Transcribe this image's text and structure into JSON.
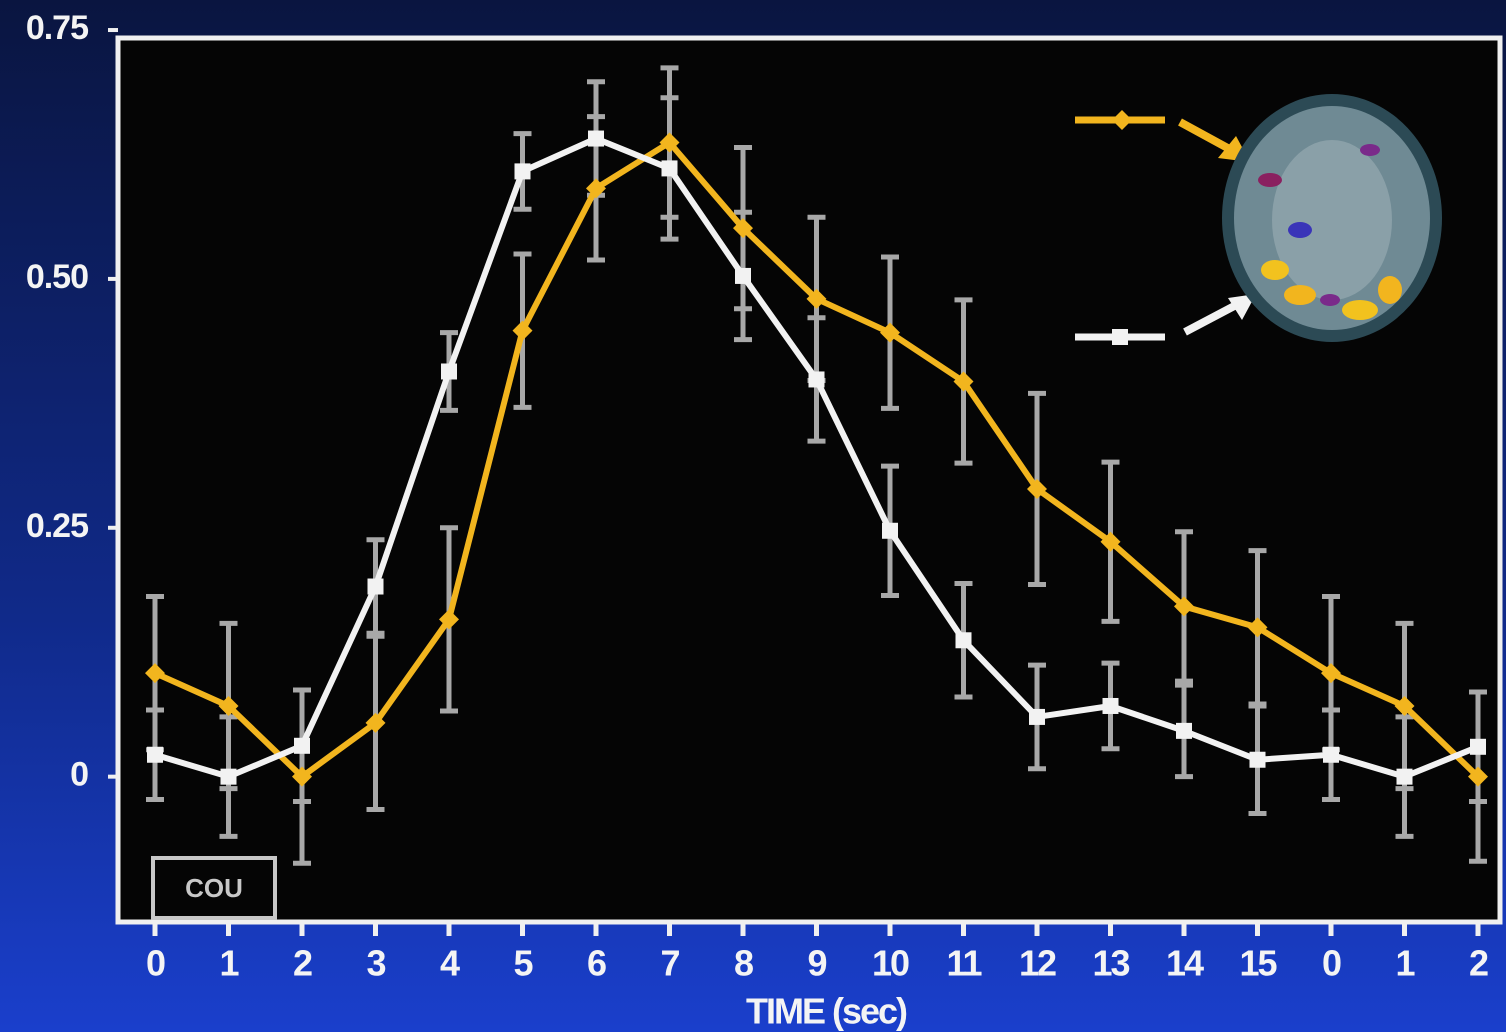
{
  "chart_data": {
    "type": "line",
    "x_label": "TIME (sec)",
    "annotation": "COU",
    "categories": [
      "0",
      "1",
      "2",
      "3",
      "4",
      "5",
      "6",
      "7",
      "8",
      "9",
      "10",
      "11",
      "12",
      "13",
      "14",
      "15",
      "0",
      "1",
      "2"
    ],
    "series": [
      {
        "color": "#f2b51e",
        "marker": "diamond",
        "values": [
          0.104,
          0.071,
          0,
          0.054,
          0.158,
          0.448,
          0.591,
          0.637,
          0.551,
          0.48,
          0.446,
          0.397,
          0.289,
          0.236,
          0.171,
          0.15,
          0.104,
          0.071,
          0
        ],
        "errors": [
          0.077,
          0.083,
          0.087,
          0.087,
          0.092,
          0.077,
          0.072,
          0.075,
          0.081,
          0.082,
          0.076,
          0.082,
          0.096,
          0.08,
          0.075,
          0.077,
          0.077,
          0.083,
          0.085
        ]
      },
      {
        "color": "#f2f2f2",
        "marker": "square",
        "values": [
          0.022,
          0,
          0.031,
          0.191,
          0.407,
          0.608,
          0.641,
          0.611,
          0.503,
          0.399,
          0.247,
          0.137,
          0.06,
          0.071,
          0.046,
          0.017,
          0.022,
          0,
          0.03
        ],
        "errors": [
          0.045,
          0.06,
          0.056,
          0.047,
          0.039,
          0.038,
          0.057,
          0.071,
          0.064,
          0.062,
          0.065,
          0.057,
          0.052,
          0.043,
          0.046,
          0.054,
          0.045,
          0.06,
          0.055
        ]
      }
    ],
    "ylim": [
      -0.146,
      0.742
    ],
    "yticks": [
      0,
      0.25,
      {
        "value": 0.5,
        "label": "0.50"
      },
      0.75
    ],
    "error_bar_color": "#a8a8a8"
  }
}
